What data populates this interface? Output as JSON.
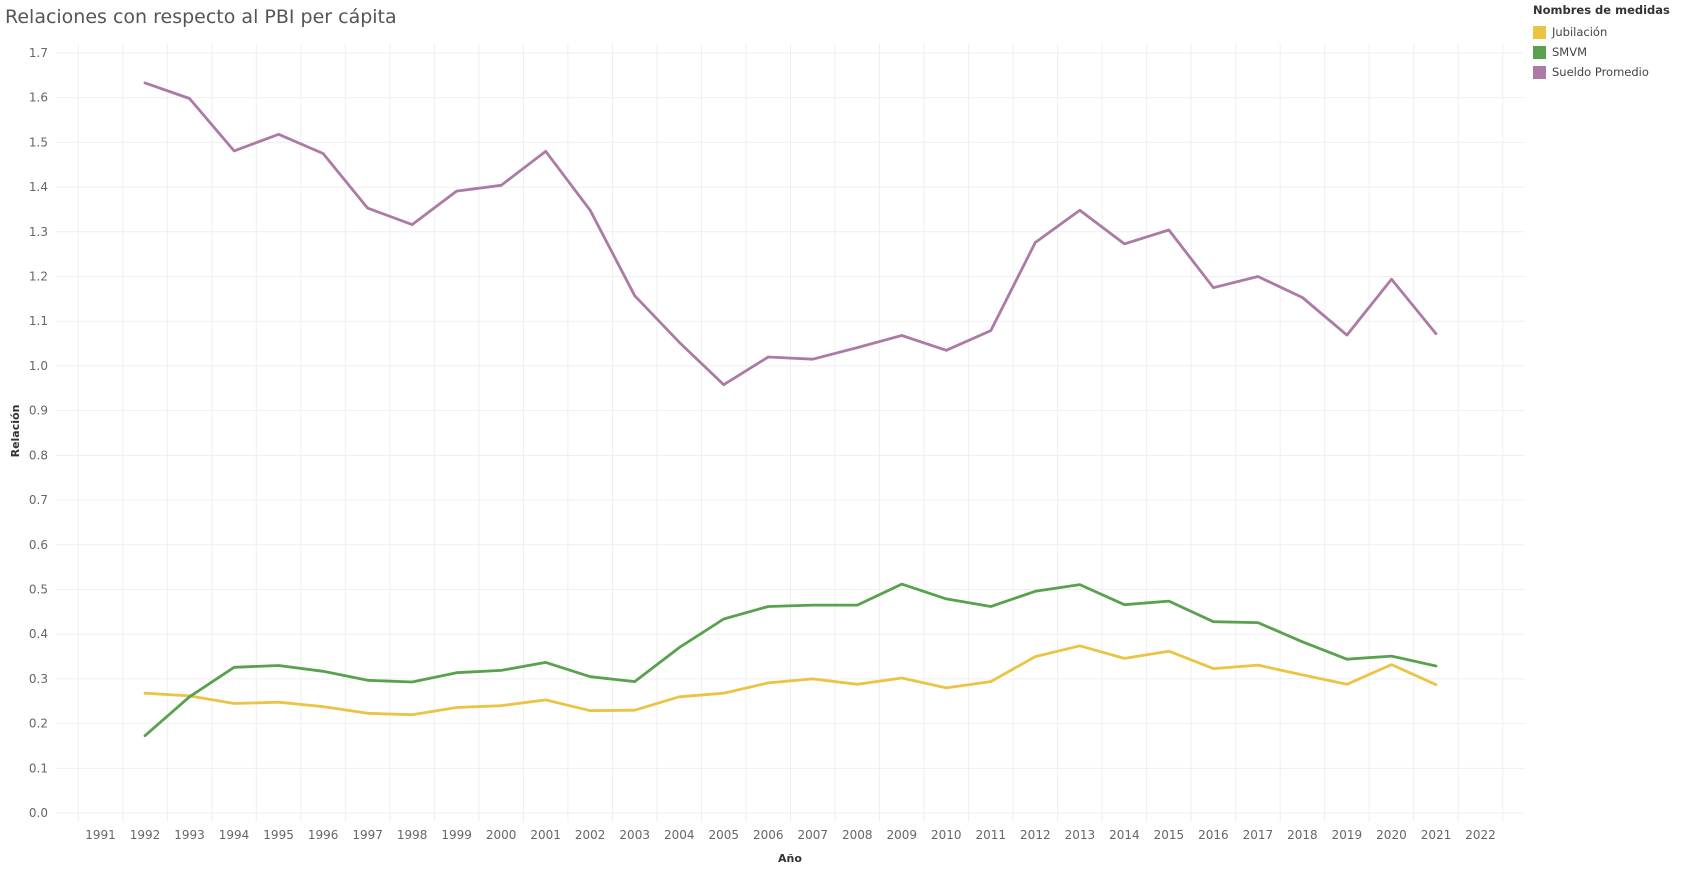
{
  "chart_data": {
    "type": "line",
    "title": "Relaciones con respecto al PBI per cápita",
    "xlabel": "Año",
    "ylabel": "Relación",
    "legend_title": "Nombres de medidas",
    "legend_position": "top-right",
    "grid": true,
    "x_ticks": [
      1991,
      1992,
      1993,
      1994,
      1995,
      1996,
      1997,
      1998,
      1999,
      2000,
      2001,
      2002,
      2003,
      2004,
      2005,
      2006,
      2007,
      2008,
      2009,
      2010,
      2011,
      2012,
      2013,
      2014,
      2015,
      2016,
      2017,
      2018,
      2019,
      2020,
      2021,
      2022
    ],
    "y_ticks": [
      "0.0",
      "0.1",
      "0.2",
      "0.3",
      "0.4",
      "0.5",
      "0.6",
      "0.7",
      "0.8",
      "0.9",
      "1.0",
      "1.1",
      "1.2",
      "1.3",
      "1.4",
      "1.5",
      "1.6",
      "1.7"
    ],
    "xlim": [
      1990.0,
      2023.0
    ],
    "ylim": [
      -0.02,
      1.72
    ],
    "x": [
      1992,
      1993,
      1994,
      1995,
      1996,
      1997,
      1998,
      1999,
      2000,
      2001,
      2002,
      2003,
      2004,
      2005,
      2006,
      2007,
      2008,
      2009,
      2010,
      2011,
      2012,
      2013,
      2014,
      2015,
      2016,
      2017,
      2018,
      2019,
      2020,
      2021
    ],
    "series": [
      {
        "name": "Jubilación",
        "color": "#EBC443",
        "values": [
          0.268,
          0.262,
          0.245,
          0.248,
          0.238,
          0.223,
          0.22,
          0.236,
          0.24,
          0.253,
          0.229,
          0.23,
          0.26,
          0.268,
          0.291,
          0.3,
          0.288,
          0.302,
          0.28,
          0.294,
          0.35,
          0.374,
          0.346,
          0.362,
          0.323,
          0.331,
          0.309,
          0.288,
          0.332,
          0.287
        ]
      },
      {
        "name": "SMVM",
        "color": "#59A14F",
        "values": [
          0.173,
          0.26,
          0.326,
          0.33,
          0.317,
          0.297,
          0.293,
          0.314,
          0.319,
          0.337,
          0.305,
          0.294,
          0.37,
          0.434,
          0.462,
          0.465,
          0.465,
          0.512,
          0.479,
          0.462,
          0.496,
          0.511,
          0.466,
          0.474,
          0.428,
          0.426,
          0.383,
          0.344,
          0.351,
          0.329
        ]
      },
      {
        "name": "Sueldo Promedio",
        "color": "#AB7AA5",
        "values": [
          1.633,
          1.598,
          1.481,
          1.518,
          1.475,
          1.353,
          1.316,
          1.391,
          1.404,
          1.48,
          1.348,
          1.157,
          1.053,
          0.958,
          1.02,
          1.015,
          1.041,
          1.068,
          1.035,
          1.079,
          1.276,
          1.348,
          1.273,
          1.304,
          1.175,
          1.2,
          1.153,
          1.069,
          1.194,
          1.072
        ]
      }
    ]
  }
}
